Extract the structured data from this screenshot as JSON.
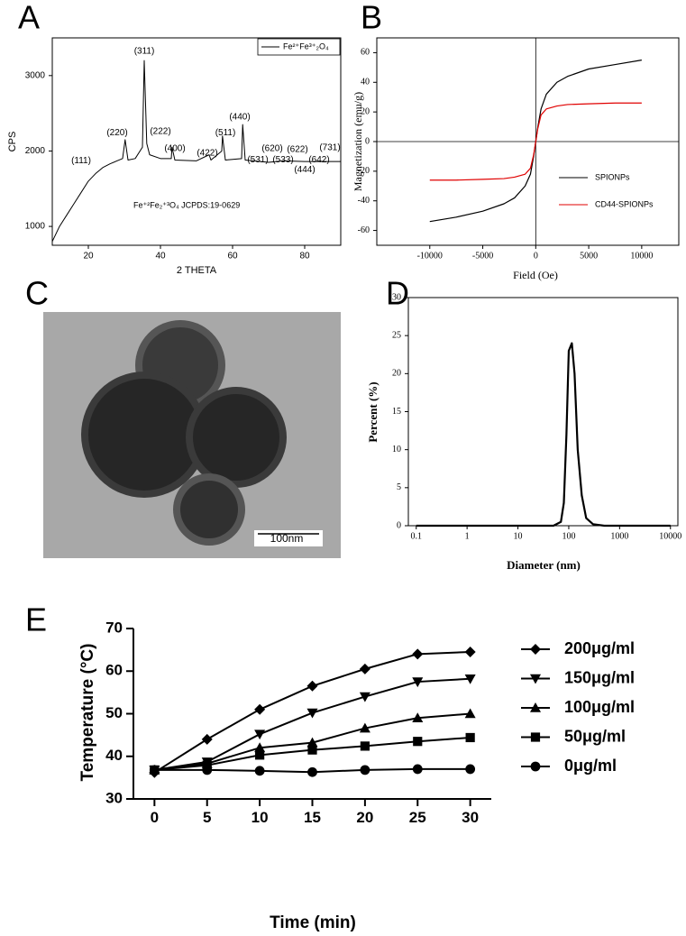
{
  "chart_data": [
    {
      "type": "line",
      "panel": "A",
      "xlabel": "2 THETA",
      "ylabel": "CPS",
      "xlim": [
        10,
        90
      ],
      "xticks": [
        20,
        40,
        60,
        80
      ],
      "ylim": [
        750,
        3500
      ],
      "yticks": [
        1000,
        2000,
        3000
      ],
      "x": [
        10,
        12,
        14,
        16,
        18,
        20,
        22,
        24,
        26,
        28,
        29.5,
        30.2,
        31,
        33,
        35,
        35.5,
        36.2,
        37,
        40,
        43,
        43.2,
        44,
        50,
        53.5,
        54,
        57,
        57.2,
        58,
        62.5,
        62.8,
        63.5,
        70,
        74,
        80,
        90
      ],
      "series": [
        {
          "name": "Fe²⁺Fe³⁺₂O₄",
          "color": "#000000",
          "values": [
            800,
            1000,
            1150,
            1300,
            1450,
            1600,
            1700,
            1780,
            1830,
            1870,
            1900,
            2150,
            1880,
            1900,
            2050,
            3200,
            2100,
            1950,
            1900,
            1900,
            2050,
            1880,
            1870,
            1950,
            1880,
            2000,
            2200,
            1880,
            1900,
            2350,
            1880,
            1850,
            1870,
            1860,
            1860
          ]
        }
      ],
      "note": "Fe⁺²Fe₂⁺³O₄   JCPDS:19-0629",
      "annotations": [
        {
          "text": "(111)",
          "x": 18,
          "y": 1870
        },
        {
          "text": "(220)",
          "x": 28,
          "y": 2240
        },
        {
          "text": "(311)",
          "x": 35.5,
          "y": 3320
        },
        {
          "text": "(222)",
          "x": 40,
          "y": 2260
        },
        {
          "text": "(400)",
          "x": 44,
          "y": 2030
        },
        {
          "text": "(422)",
          "x": 53,
          "y": 1970
        },
        {
          "text": "(511)",
          "x": 58,
          "y": 2240
        },
        {
          "text": "(440)",
          "x": 62,
          "y": 2450
        },
        {
          "text": "(531)",
          "x": 67,
          "y": 1880
        },
        {
          "text": "(620)",
          "x": 71,
          "y": 2030
        },
        {
          "text": "(533)",
          "x": 74,
          "y": 1880
        },
        {
          "text": "(622)",
          "x": 78,
          "y": 2020
        },
        {
          "text": "(444)",
          "x": 80,
          "y": 1750
        },
        {
          "text": "(642)",
          "x": 84,
          "y": 1880
        },
        {
          "text": "(731)",
          "x": 87,
          "y": 2040
        }
      ]
    },
    {
      "type": "line",
      "panel": "B",
      "xlabel": "Field (Oe)",
      "ylabel": "Magnetization (emu/g)",
      "xlim": [
        -15000,
        13500
      ],
      "xticks": [
        -10000,
        -5000,
        0,
        5000,
        10000
      ],
      "ylim": [
        -70,
        70
      ],
      "yticks": [
        -60,
        -40,
        -20,
        0,
        20,
        40,
        60
      ],
      "x": [
        -10000,
        -7500,
        -5000,
        -3000,
        -2000,
        -1000,
        -500,
        -200,
        0,
        200,
        500,
        1000,
        2000,
        3000,
        5000,
        7500,
        10000
      ],
      "series": [
        {
          "name": "SPIONPs",
          "color": "#000000",
          "values": [
            -54,
            -51,
            -47,
            -42,
            -38,
            -30,
            -22,
            -10,
            0,
            10,
            22,
            32,
            40,
            44,
            49,
            52,
            55
          ]
        },
        {
          "name": "CD44-SPIONPs",
          "color": "#e00000",
          "values": [
            -26,
            -26,
            -25.5,
            -25,
            -24,
            -22,
            -18,
            -9,
            0,
            9,
            18,
            22,
            24,
            25,
            25.5,
            26,
            26
          ]
        }
      ]
    },
    {
      "type": "line",
      "panel": "D",
      "xlabel": "Diameter (nm)",
      "ylabel": "Percent (%)",
      "xscale": "log",
      "xlim": [
        0.07,
        14000
      ],
      "xticks": [
        0.1,
        1,
        10,
        100,
        1000,
        10000
      ],
      "ylim": [
        0,
        30
      ],
      "yticks": [
        0,
        5,
        10,
        15,
        20,
        25,
        30
      ],
      "x": [
        0.1,
        50,
        70,
        80,
        90,
        100,
        115,
        130,
        150,
        180,
        220,
        300,
        500,
        10000
      ],
      "series": [
        {
          "name": "Percent",
          "color": "#000000",
          "values": [
            0,
            0,
            0.5,
            3,
            12,
            23,
            24,
            20,
            10,
            4,
            1,
            0.2,
            0,
            0
          ]
        }
      ]
    },
    {
      "type": "line",
      "panel": "E",
      "xlabel": "Time (min)",
      "ylabel": "Temperature (°C)",
      "xlim": [
        -2,
        32
      ],
      "xticks": [
        0,
        5,
        10,
        15,
        20,
        25,
        30
      ],
      "ylim": [
        30,
        70
      ],
      "yticks": [
        30,
        40,
        50,
        60,
        70
      ],
      "x": [
        0,
        5,
        10,
        15,
        20,
        25,
        30
      ],
      "series": [
        {
          "name": "200μg/ml",
          "color": "#000000",
          "marker": "diamond",
          "values": [
            36.2,
            44,
            51,
            56.5,
            60.5,
            64,
            64.5
          ]
        },
        {
          "name": "150μg/ml",
          "color": "#000000",
          "marker": "triangle-down",
          "values": [
            36.8,
            38.7,
            45.2,
            50.2,
            54,
            57.5,
            58.2
          ]
        },
        {
          "name": "100μg/ml",
          "color": "#000000",
          "marker": "triangle-up",
          "values": [
            36.8,
            38.3,
            42,
            43.2,
            46.6,
            49,
            50
          ]
        },
        {
          "name": "50μg/ml",
          "color": "#000000",
          "marker": "square",
          "values": [
            36.8,
            37.9,
            40.3,
            41.5,
            42.4,
            43.5,
            44.4
          ]
        },
        {
          "name": "0μg/ml",
          "color": "#000000",
          "marker": "circle",
          "values": [
            36.8,
            36.8,
            36.6,
            36.3,
            36.8,
            37,
            37
          ]
        }
      ]
    }
  ],
  "image": {
    "panel": "C",
    "scale_bar": "100nm"
  }
}
